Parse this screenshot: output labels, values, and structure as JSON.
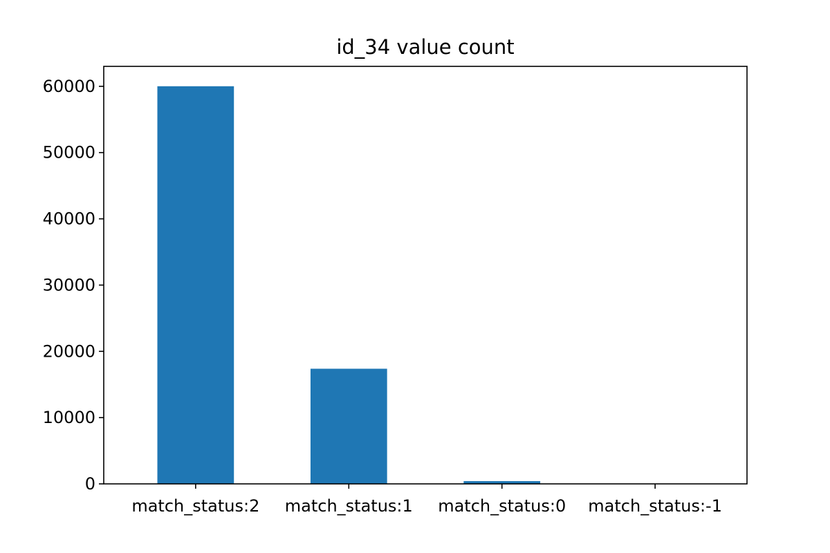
{
  "chart_data": {
    "type": "bar",
    "title": "id_34 value count",
    "xlabel": "",
    "ylabel": "",
    "categories": [
      "match_status:2",
      "match_status:1",
      "match_status:0",
      "match_status:-1"
    ],
    "values": [
      60011,
      17376,
      415,
      6
    ],
    "ylim": [
      0,
      63011
    ],
    "yticks": [
      0,
      10000,
      20000,
      30000,
      40000,
      50000,
      60000
    ],
    "bar_color": "#1f77b4",
    "grid": false,
    "legend": "none"
  }
}
